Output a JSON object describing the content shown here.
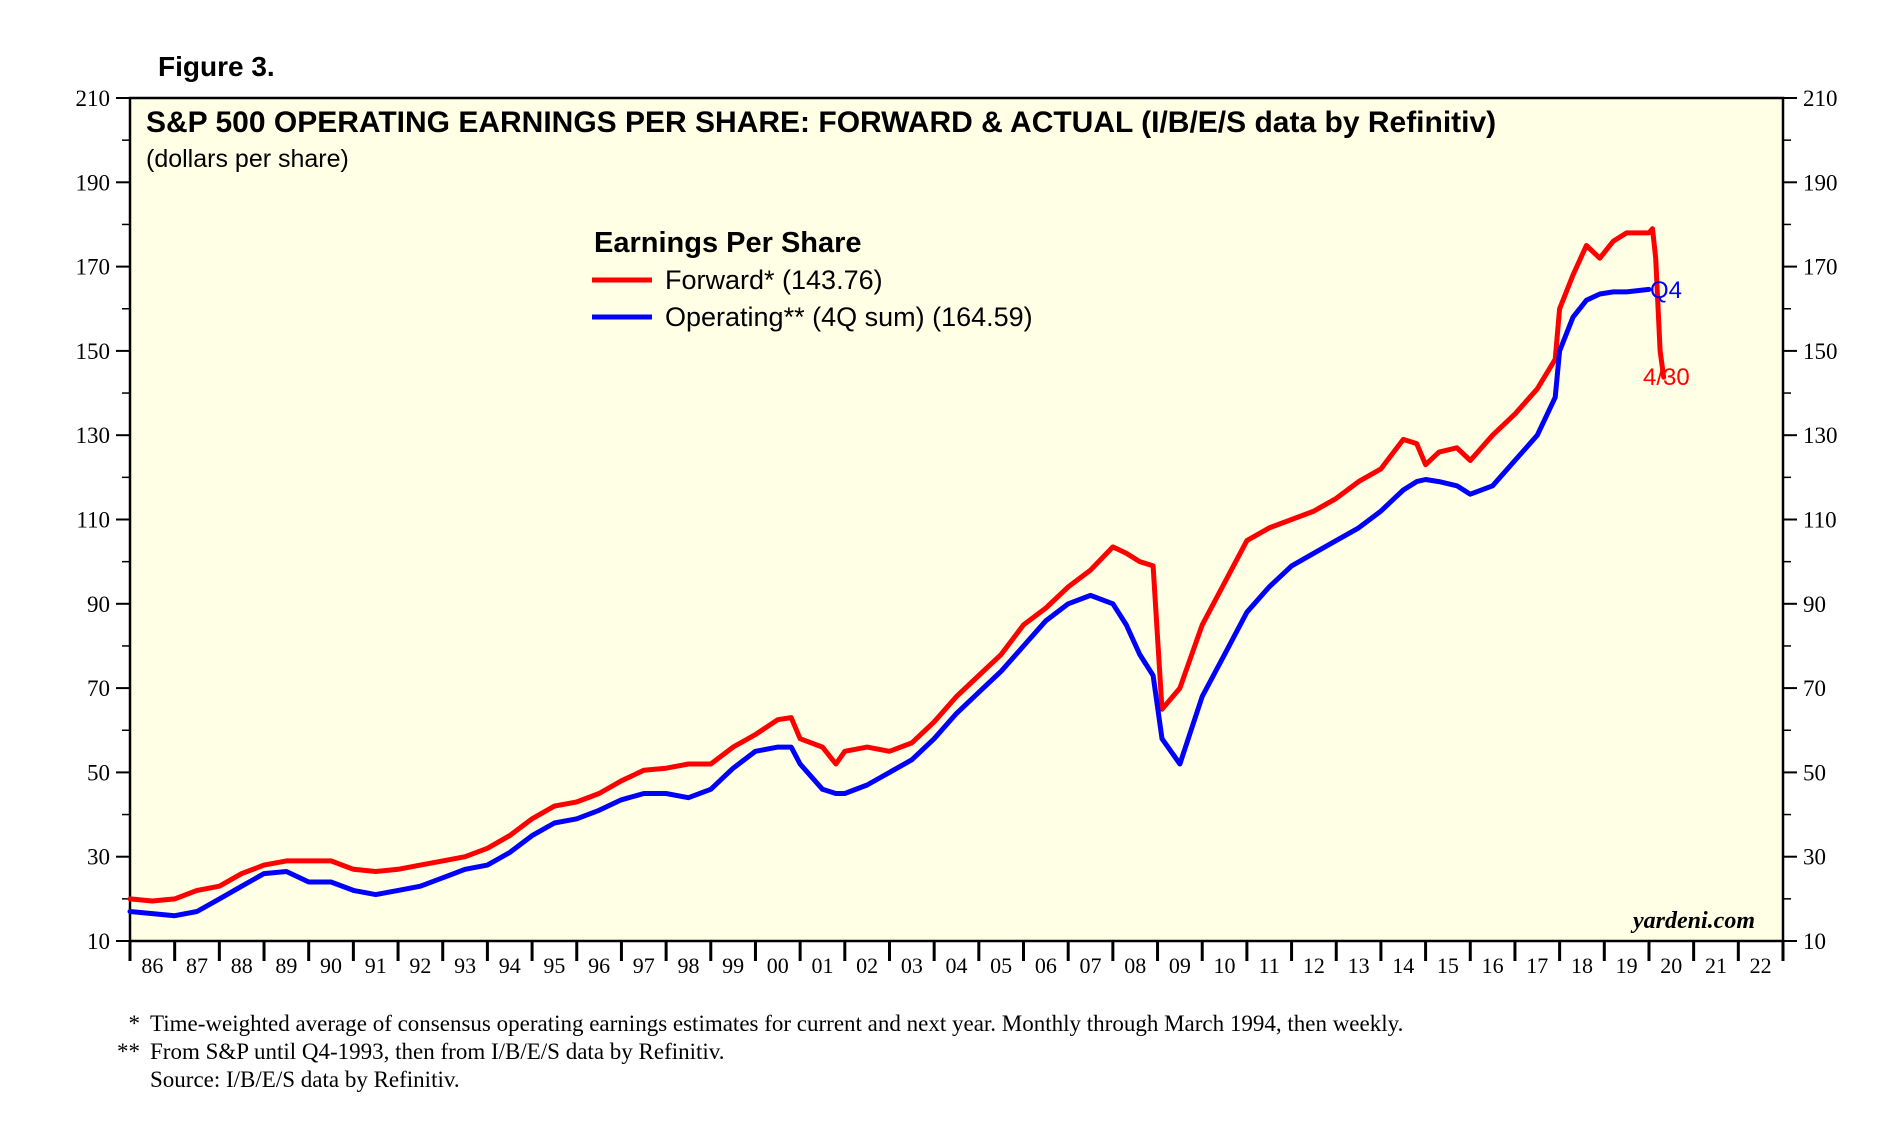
{
  "figure_label": "Figure 3.",
  "chart_data": {
    "type": "line",
    "title": "S&P 500 OPERATING EARNINGS PER SHARE: FORWARD & ACTUAL (I/B/E/S data by Refinitiv)",
    "subtitle": "(dollars per share)",
    "legend_title": "Earnings Per Share",
    "legend_position": "top-left",
    "xlabel": "",
    "ylabel": "",
    "ylim": [
      10,
      210
    ],
    "yticks": [
      10,
      30,
      50,
      70,
      90,
      110,
      130,
      150,
      170,
      190,
      210
    ],
    "xlim": [
      1986,
      2023
    ],
    "xtick_labels": [
      "86",
      "87",
      "88",
      "89",
      "90",
      "91",
      "92",
      "93",
      "94",
      "95",
      "96",
      "97",
      "98",
      "99",
      "00",
      "01",
      "02",
      "03",
      "04",
      "05",
      "06",
      "07",
      "08",
      "09",
      "10",
      "11",
      "12",
      "13",
      "14",
      "15",
      "16",
      "17",
      "18",
      "19",
      "20",
      "21",
      "22"
    ],
    "grid": false,
    "series": [
      {
        "name": "Forward* (143.76)",
        "color": "#ff0000",
        "end_label": "4/30",
        "x": [
          1986.0,
          1986.5,
          1987.0,
          1987.5,
          1988.0,
          1988.5,
          1989.0,
          1989.5,
          1990.0,
          1990.5,
          1991.0,
          1991.5,
          1992.0,
          1992.5,
          1993.0,
          1993.5,
          1994.0,
          1994.5,
          1995.0,
          1995.5,
          1996.0,
          1996.5,
          1997.0,
          1997.5,
          1998.0,
          1998.5,
          1999.0,
          1999.5,
          2000.0,
          2000.5,
          2000.8,
          2001.0,
          2001.5,
          2001.8,
          2002.0,
          2002.5,
          2003.0,
          2003.5,
          2004.0,
          2004.5,
          2005.0,
          2005.5,
          2006.0,
          2006.5,
          2007.0,
          2007.5,
          2008.0,
          2008.3,
          2008.6,
          2008.9,
          2009.1,
          2009.5,
          2010.0,
          2010.5,
          2011.0,
          2011.5,
          2012.0,
          2012.5,
          2013.0,
          2013.5,
          2014.0,
          2014.5,
          2014.8,
          2015.0,
          2015.3,
          2015.7,
          2016.0,
          2016.5,
          2017.0,
          2017.5,
          2017.9,
          2018.0,
          2018.3,
          2018.6,
          2018.9,
          2019.2,
          2019.5,
          2020.0,
          2020.08,
          2020.15,
          2020.25,
          2020.33
        ],
        "values": [
          20,
          19.5,
          20,
          22,
          23,
          26,
          28,
          29,
          29,
          29,
          27,
          26.5,
          27,
          28,
          29,
          30,
          32,
          35,
          39,
          42,
          43,
          45,
          48,
          50.5,
          51,
          52,
          52,
          56,
          59,
          62.5,
          63,
          58,
          56,
          52,
          55,
          56,
          55,
          57,
          62,
          68,
          73,
          78,
          85,
          89,
          94,
          98,
          103.5,
          102,
          100,
          99,
          65,
          70,
          85,
          95,
          105,
          108,
          110,
          112,
          115,
          119,
          122,
          129,
          128,
          123,
          126,
          127,
          124,
          130,
          135,
          141,
          148,
          160,
          168,
          175,
          172,
          176,
          178,
          178,
          179,
          172,
          150,
          143.76
        ]
      },
      {
        "name": "Operating** (4Q sum) (164.59)",
        "color": "#0000ff",
        "end_label": "Q4",
        "x": [
          1986.0,
          1986.5,
          1987.0,
          1987.5,
          1988.0,
          1988.5,
          1989.0,
          1989.5,
          1990.0,
          1990.5,
          1991.0,
          1991.5,
          1992.0,
          1992.5,
          1993.0,
          1993.5,
          1994.0,
          1994.5,
          1995.0,
          1995.5,
          1996.0,
          1996.5,
          1997.0,
          1997.5,
          1998.0,
          1998.5,
          1999.0,
          1999.5,
          2000.0,
          2000.5,
          2000.8,
          2001.0,
          2001.5,
          2001.8,
          2002.0,
          2002.5,
          2003.0,
          2003.5,
          2004.0,
          2004.5,
          2005.0,
          2005.5,
          2006.0,
          2006.5,
          2007.0,
          2007.5,
          2008.0,
          2008.3,
          2008.6,
          2008.9,
          2009.1,
          2009.5,
          2010.0,
          2010.5,
          2011.0,
          2011.5,
          2012.0,
          2012.5,
          2013.0,
          2013.5,
          2014.0,
          2014.5,
          2014.8,
          2015.0,
          2015.3,
          2015.7,
          2016.0,
          2016.5,
          2017.0,
          2017.5,
          2017.9,
          2018.0,
          2018.3,
          2018.6,
          2018.9,
          2019.2,
          2019.5,
          2020.0
        ],
        "values": [
          17,
          16.5,
          16,
          17,
          20,
          23,
          26,
          26.5,
          24,
          24,
          22,
          21,
          22,
          23,
          25,
          27,
          28,
          31,
          35,
          38,
          39,
          41,
          43.5,
          45,
          45,
          44,
          46,
          51,
          55,
          56,
          56,
          52,
          46,
          45,
          45,
          47,
          50,
          53,
          58,
          64,
          69,
          74,
          80,
          86,
          90,
          92,
          90,
          85,
          78,
          73,
          58,
          52,
          68,
          78,
          88,
          94,
          99,
          102,
          105,
          108,
          112,
          117,
          119,
          119.5,
          119,
          118,
          116,
          118,
          124,
          130,
          139,
          150,
          158,
          162,
          163.5,
          164,
          164,
          164.59
        ]
      }
    ],
    "annotations": [
      "yardeni.com"
    ]
  },
  "footnotes": [
    {
      "mark": "*",
      "text": "Time-weighted average of consensus operating earnings estimates for current and next year. Monthly through March 1994, then weekly."
    },
    {
      "mark": "**",
      "text": "From S&P until Q4-1993, then from I/B/E/S data by Refinitiv."
    },
    {
      "mark": "",
      "text": "Source: I/B/E/S data by Refinitiv."
    }
  ],
  "colors": {
    "plot_background": "#ffffe6",
    "forward": "#ff0000",
    "operating": "#0000ff"
  }
}
